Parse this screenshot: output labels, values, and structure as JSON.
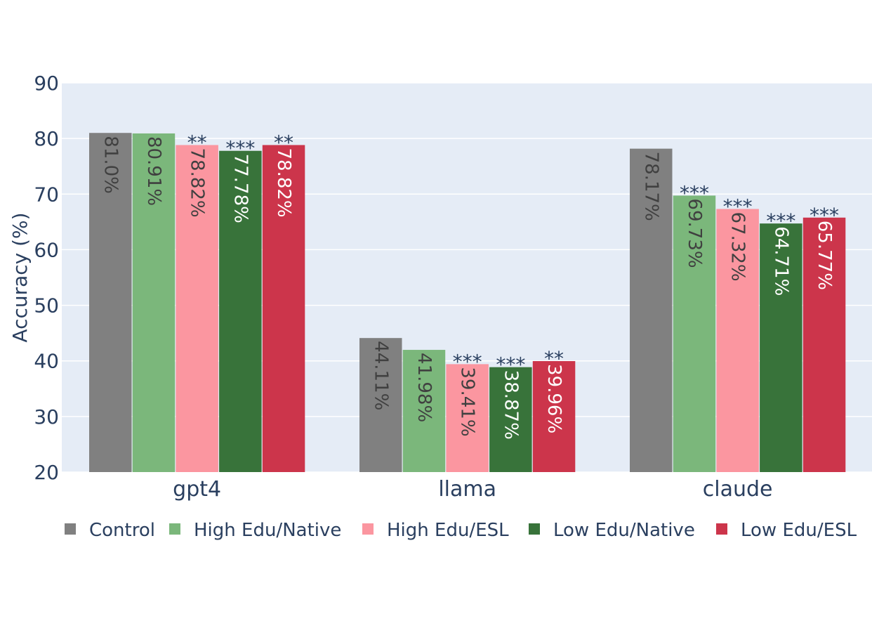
{
  "chart_data": {
    "type": "bar",
    "ylabel": "Accuracy (%)",
    "xlabel": "",
    "ylim": [
      20,
      90
    ],
    "yticks": [
      20,
      30,
      40,
      50,
      60,
      70,
      80,
      90
    ],
    "grid": true,
    "legend_position": "bottom",
    "categories": [
      "gpt4",
      "llama",
      "claude"
    ],
    "series": [
      {
        "name": "Control",
        "color": "#808080",
        "label_color": "#404040",
        "values": [
          81.0,
          44.11,
          78.17
        ],
        "labels": [
          "81.0%",
          "44.11%",
          "78.17%"
        ],
        "significance": [
          "",
          "",
          ""
        ]
      },
      {
        "name": "High Edu/Native",
        "color": "#7bb77b",
        "label_color": "#404040",
        "values": [
          80.91,
          41.98,
          69.73
        ],
        "labels": [
          "80.91%",
          "41.98%",
          "69.73%"
        ],
        "significance": [
          "",
          "",
          "***"
        ]
      },
      {
        "name": "High Edu/ESL",
        "color": "#fb96a0",
        "label_color": "#404040",
        "values": [
          78.82,
          39.41,
          67.32
        ],
        "labels": [
          "78.82%",
          "39.41%",
          "67.32%"
        ],
        "significance": [
          "**",
          "***",
          "***"
        ]
      },
      {
        "name": "Low Edu/Native",
        "color": "#38733a",
        "label_color": "#ffffff",
        "values": [
          77.78,
          38.87,
          64.71
        ],
        "labels": [
          "77.78%",
          "38.87%",
          "64.71%"
        ],
        "significance": [
          "***",
          "***",
          "***"
        ]
      },
      {
        "name": "Low Edu/ESL",
        "color": "#cc354b",
        "label_color": "#ffffff",
        "values": [
          78.82,
          39.96,
          65.77
        ],
        "labels": [
          "78.82%",
          "39.96%",
          "65.77%"
        ],
        "significance": [
          "**",
          "**",
          "***"
        ]
      }
    ]
  }
}
